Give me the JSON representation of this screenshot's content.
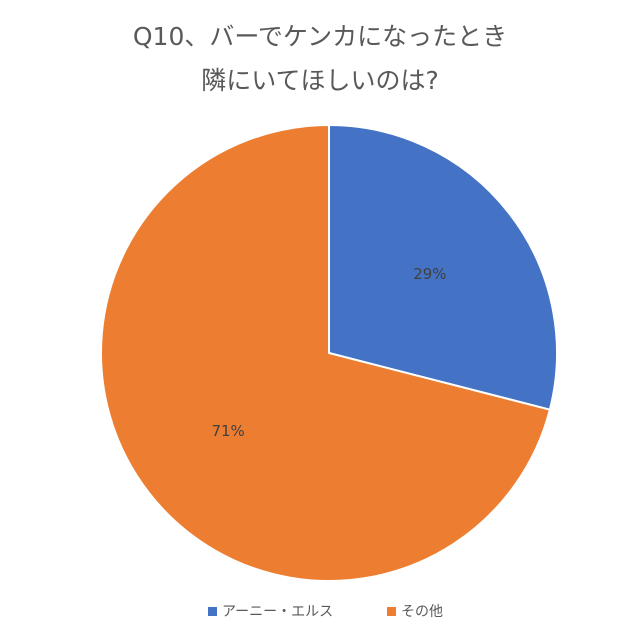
{
  "chart_data": {
    "type": "pie",
    "title": [
      "Q10、バーでケンカになったとき",
      "隣にいてほしいのは?"
    ],
    "categories": [
      "アーニー・エルス",
      "その他"
    ],
    "values": [
      29,
      71
    ],
    "value_labels": [
      "29%",
      "71%"
    ],
    "colors": [
      "#4472c4",
      "#ed7d31"
    ],
    "legend": "bottom"
  }
}
